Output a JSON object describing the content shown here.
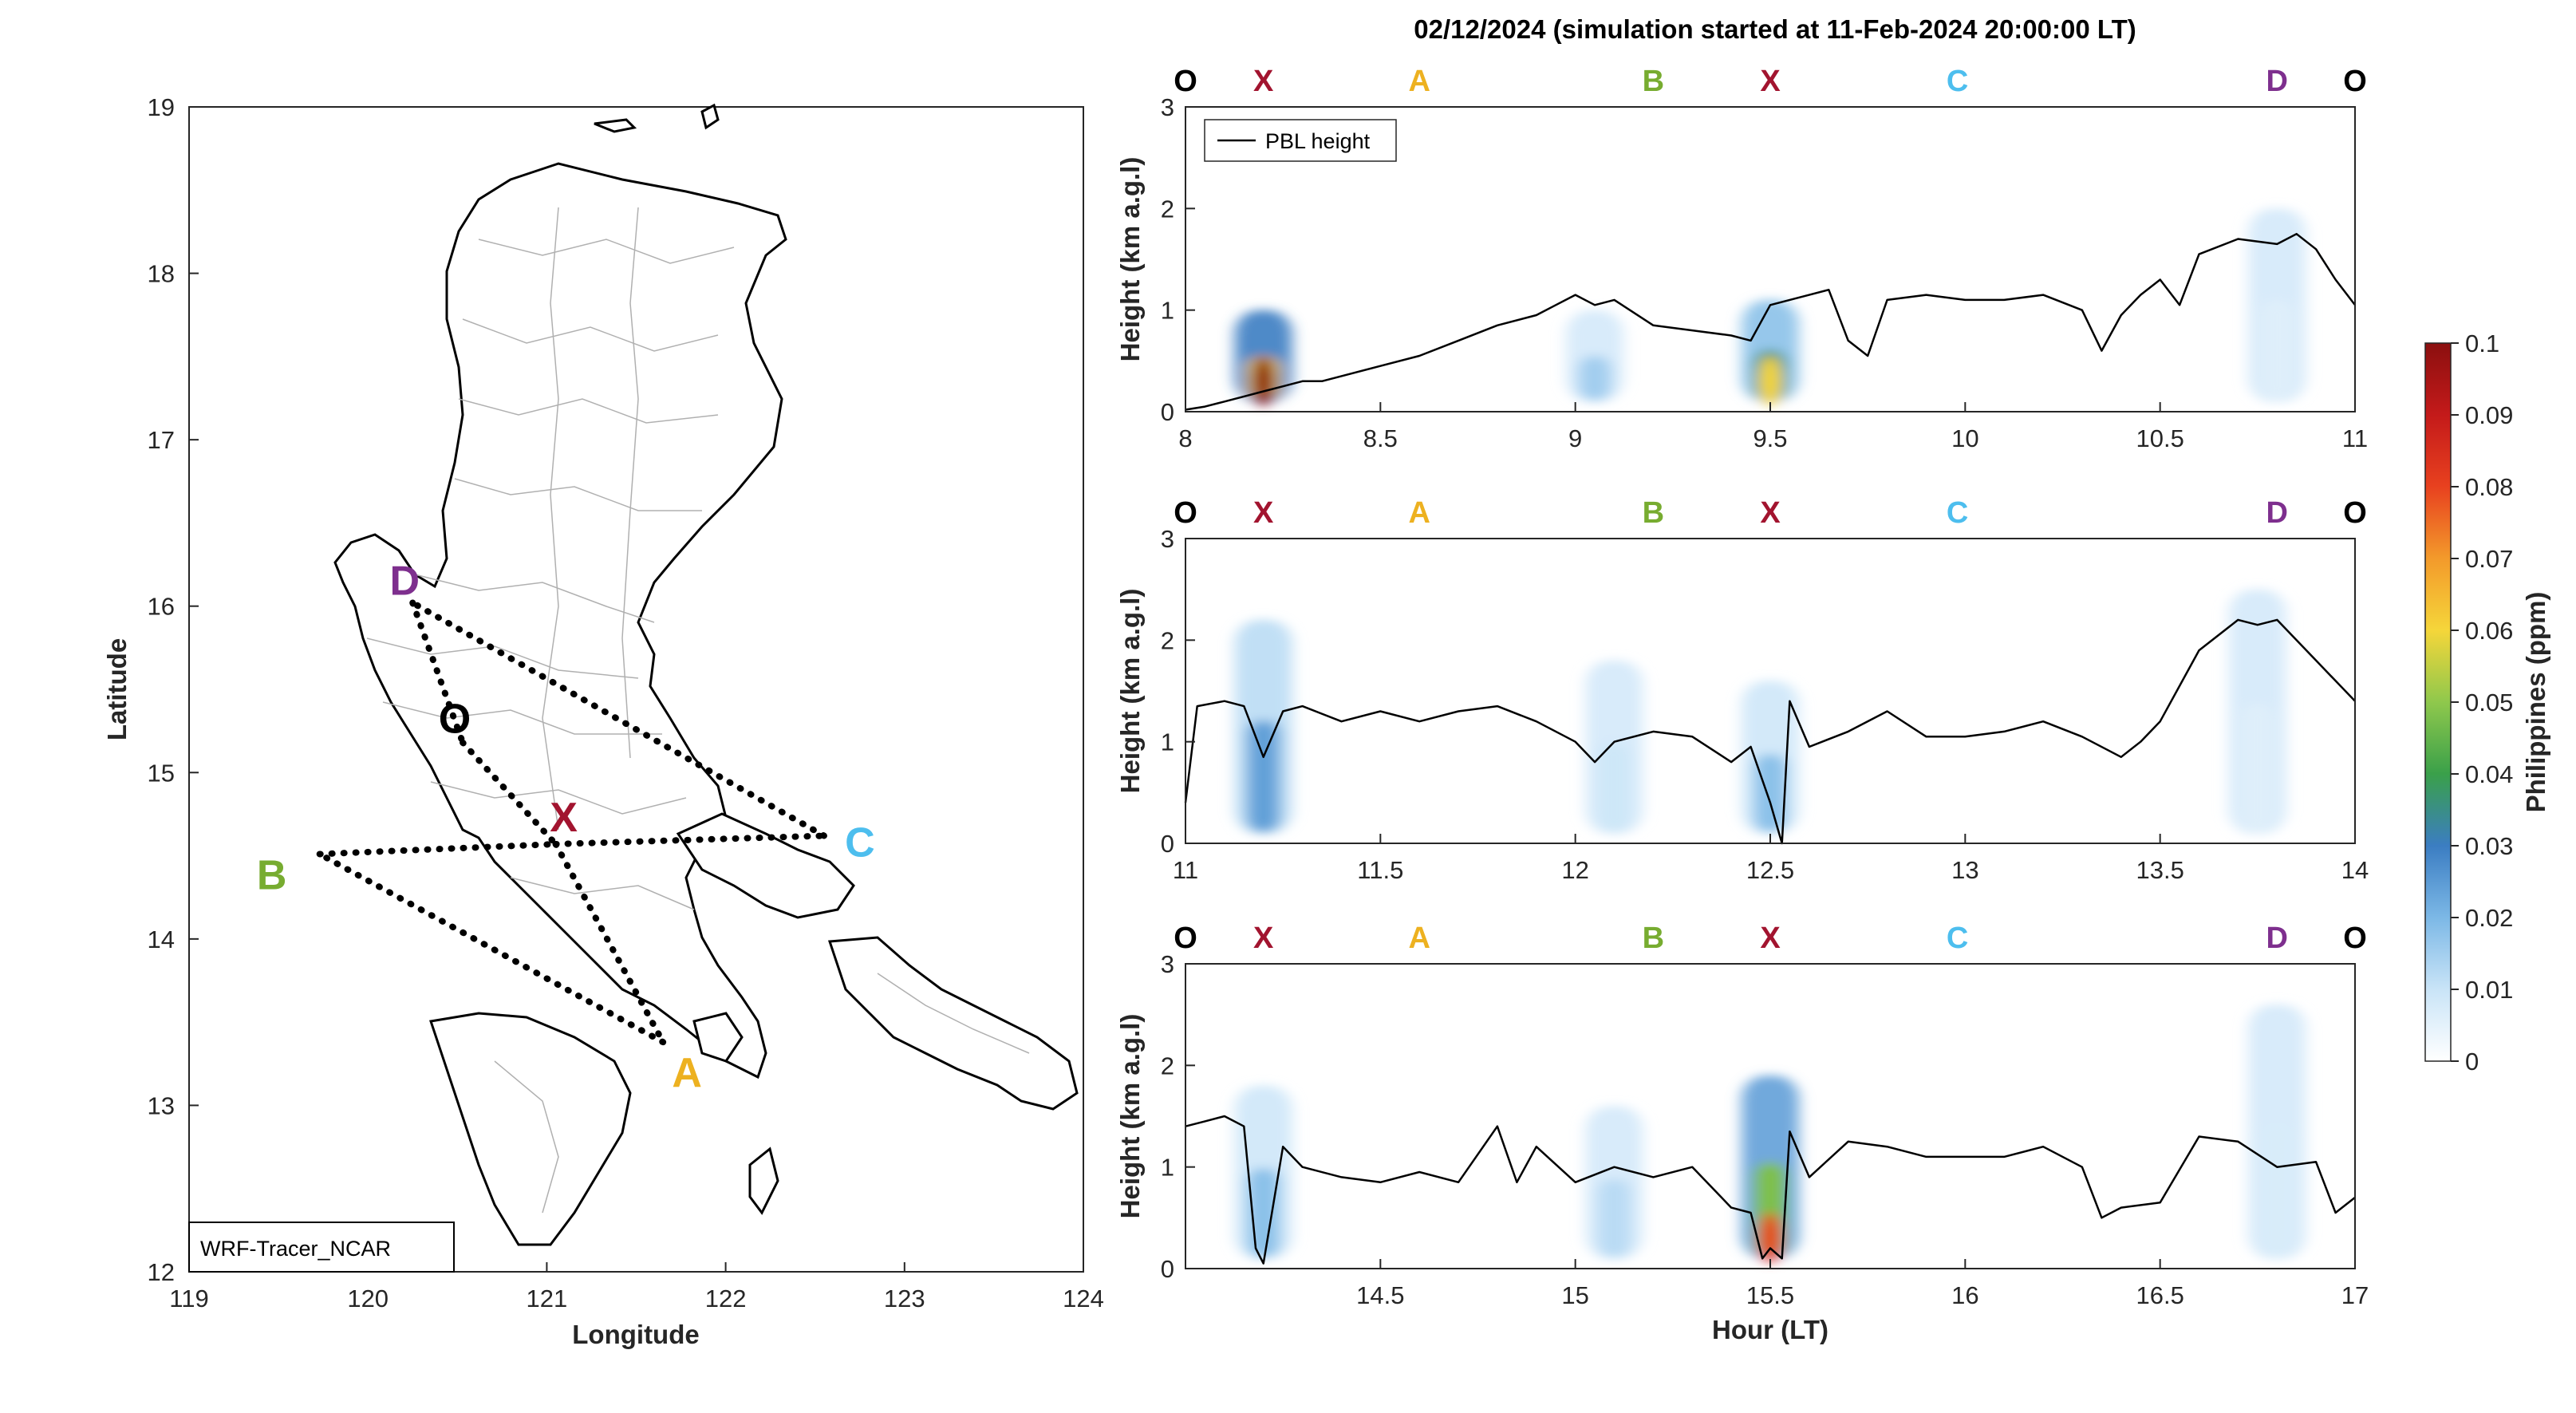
{
  "title": "02/12/2024 (simulation started at 11-Feb-2024 20:00:00 LT)",
  "colors": {
    "O": "#000000",
    "X": "#a2142f",
    "A": "#edb120",
    "B": "#77ac30",
    "C": "#4dbeee",
    "D": "#7e2f8e"
  },
  "map": {
    "xlabel": "Longitude",
    "ylabel": "Latitude",
    "xlim": [
      119,
      124
    ],
    "ylim": [
      12,
      19
    ],
    "xticks": [
      "119",
      "120",
      "121",
      "122",
      "123",
      "124"
    ],
    "yticks": [
      "12",
      "13",
      "14",
      "15",
      "16",
      "17",
      "18",
      "19"
    ],
    "badge": "WRF-Tracer_NCAR",
    "points": [
      {
        "id": "D",
        "lon": 120.25,
        "lat": 16.02
      },
      {
        "id": "O",
        "lon": 120.53,
        "lat": 15.18
      },
      {
        "id": "X",
        "lon": 121.05,
        "lat": 14.57
      },
      {
        "id": "C",
        "lon": 122.55,
        "lat": 14.62
      },
      {
        "id": "B",
        "lon": 119.73,
        "lat": 14.51
      },
      {
        "id": "A",
        "lon": 121.65,
        "lat": 13.38
      }
    ],
    "route_sequence": [
      "O",
      "X",
      "A",
      "B",
      "X",
      "C",
      "D",
      "O"
    ]
  },
  "chart_data": [
    {
      "type": "heatmap",
      "xlim": [
        8,
        11
      ],
      "ylim": [
        0,
        3
      ],
      "xticks": [
        "8",
        "8.5",
        "9",
        "9.5",
        "10",
        "10.5",
        "11"
      ],
      "yticks": [
        "0",
        "1",
        "2",
        "3"
      ],
      "ylabel": "Height (km a.g.l)",
      "legend": "PBL height",
      "legend_position": "top-left",
      "route_markers": [
        {
          "label": "O",
          "x": 8.0
        },
        {
          "label": "X",
          "x": 8.2
        },
        {
          "label": "A",
          "x": 8.6
        },
        {
          "label": "B",
          "x": 9.2
        },
        {
          "label": "X",
          "x": 9.5
        },
        {
          "label": "C",
          "x": 9.98
        },
        {
          "label": "D",
          "x": 10.8
        },
        {
          "label": "O",
          "x": 11.0
        }
      ],
      "pbl_height": {
        "x": [
          8.0,
          8.05,
          8.1,
          8.15,
          8.2,
          8.25,
          8.3,
          8.35,
          8.4,
          8.5,
          8.6,
          8.7,
          8.8,
          8.9,
          8.95,
          9.0,
          9.05,
          9.1,
          9.2,
          9.3,
          9.4,
          9.45,
          9.5,
          9.55,
          9.6,
          9.65,
          9.7,
          9.75,
          9.8,
          9.9,
          10.0,
          10.1,
          10.2,
          10.3,
          10.35,
          10.4,
          10.45,
          10.5,
          10.55,
          10.6,
          10.7,
          10.8,
          10.85,
          10.9,
          10.95,
          11.0
        ],
        "y": [
          0.02,
          0.05,
          0.1,
          0.15,
          0.2,
          0.25,
          0.3,
          0.3,
          0.35,
          0.45,
          0.55,
          0.7,
          0.85,
          0.95,
          1.05,
          1.15,
          1.05,
          1.1,
          0.85,
          0.8,
          0.75,
          0.7,
          1.05,
          1.1,
          1.15,
          1.2,
          0.7,
          0.55,
          1.1,
          1.15,
          1.1,
          1.1,
          1.15,
          1.0,
          0.6,
          0.95,
          1.15,
          1.3,
          1.05,
          1.55,
          1.7,
          1.65,
          1.75,
          1.6,
          1.3,
          1.05
        ]
      },
      "tracer_plumes": [
        {
          "x": 8.2,
          "top": 1.0,
          "peak_ppm": 0.1
        },
        {
          "x": 9.05,
          "top": 1.0,
          "peak_ppm": 0.025
        },
        {
          "x": 9.5,
          "top": 1.1,
          "peak_ppm": 0.06
        },
        {
          "x": 10.8,
          "top": 2.0,
          "peak_ppm": 0.01
        }
      ]
    },
    {
      "type": "heatmap",
      "xlim": [
        11,
        14
      ],
      "ylim": [
        0,
        3
      ],
      "xticks": [
        "11",
        "11.5",
        "12",
        "12.5",
        "13",
        "13.5",
        "14"
      ],
      "yticks": [
        "0",
        "1",
        "2",
        "3"
      ],
      "ylabel": "Height (km a.g.l)",
      "route_markers": [
        {
          "label": "O",
          "x": 11.0
        },
        {
          "label": "X",
          "x": 11.2
        },
        {
          "label": "A",
          "x": 11.6
        },
        {
          "label": "B",
          "x": 12.2
        },
        {
          "label": "X",
          "x": 12.5
        },
        {
          "label": "C",
          "x": 12.98
        },
        {
          "label": "D",
          "x": 13.8
        },
        {
          "label": "O",
          "x": 14.0
        }
      ],
      "pbl_height": {
        "x": [
          11.0,
          11.03,
          11.1,
          11.15,
          11.2,
          11.25,
          11.3,
          11.4,
          11.5,
          11.6,
          11.7,
          11.8,
          11.9,
          12.0,
          12.05,
          12.1,
          12.2,
          12.3,
          12.4,
          12.45,
          12.5,
          12.53,
          12.55,
          12.6,
          12.7,
          12.8,
          12.9,
          13.0,
          13.1,
          13.2,
          13.3,
          13.4,
          13.45,
          13.5,
          13.6,
          13.7,
          13.75,
          13.8,
          13.9,
          14.0
        ],
        "y": [
          0.4,
          1.35,
          1.4,
          1.35,
          0.85,
          1.3,
          1.35,
          1.2,
          1.3,
          1.2,
          1.3,
          1.35,
          1.2,
          1.0,
          0.8,
          1.0,
          1.1,
          1.05,
          0.8,
          0.95,
          0.4,
          0.0,
          1.4,
          0.95,
          1.1,
          1.3,
          1.05,
          1.05,
          1.1,
          1.2,
          1.05,
          0.85,
          1.0,
          1.2,
          1.9,
          2.2,
          2.15,
          2.2,
          1.8,
          1.4
        ]
      },
      "tracer_plumes": [
        {
          "x": 11.2,
          "top": 2.2,
          "peak_ppm": 0.04
        },
        {
          "x": 12.1,
          "top": 1.8,
          "peak_ppm": 0.015
        },
        {
          "x": 12.5,
          "top": 1.6,
          "peak_ppm": 0.03
        },
        {
          "x": 13.75,
          "top": 2.5,
          "peak_ppm": 0.01
        }
      ]
    },
    {
      "type": "heatmap",
      "xlim": [
        14,
        17
      ],
      "ylim": [
        0,
        3
      ],
      "xticks": [
        "14.5",
        "15",
        "15.5",
        "16",
        "16.5",
        "17"
      ],
      "yticks": [
        "0",
        "1",
        "2",
        "3"
      ],
      "xlabel": "Hour (LT)",
      "ylabel": "Height (km a.g.l)",
      "route_markers": [
        {
          "label": "O",
          "x": 14.0
        },
        {
          "label": "X",
          "x": 14.2
        },
        {
          "label": "A",
          "x": 14.6
        },
        {
          "label": "B",
          "x": 15.2
        },
        {
          "label": "X",
          "x": 15.5
        },
        {
          "label": "C",
          "x": 15.98
        },
        {
          "label": "D",
          "x": 16.8
        },
        {
          "label": "O",
          "x": 17.0
        }
      ],
      "pbl_height": {
        "x": [
          14.0,
          14.05,
          14.1,
          14.15,
          14.18,
          14.2,
          14.25,
          14.3,
          14.4,
          14.5,
          14.6,
          14.7,
          14.8,
          14.85,
          14.9,
          15.0,
          15.1,
          15.2,
          15.3,
          15.4,
          15.45,
          15.48,
          15.5,
          15.53,
          15.55,
          15.6,
          15.7,
          15.8,
          15.9,
          16.0,
          16.1,
          16.2,
          16.3,
          16.35,
          16.4,
          16.5,
          16.6,
          16.7,
          16.8,
          16.9,
          16.95,
          17.0
        ],
        "y": [
          1.4,
          1.45,
          1.5,
          1.4,
          0.2,
          0.05,
          1.2,
          1.0,
          0.9,
          0.85,
          0.95,
          0.85,
          1.4,
          0.85,
          1.2,
          0.85,
          1.0,
          0.9,
          1.0,
          0.6,
          0.55,
          0.1,
          0.2,
          0.1,
          1.35,
          0.9,
          1.25,
          1.2,
          1.1,
          1.1,
          1.1,
          1.2,
          1.0,
          0.5,
          0.6,
          0.65,
          1.3,
          1.25,
          1.0,
          1.05,
          0.55,
          0.7
        ]
      },
      "tracer_plumes": [
        {
          "x": 14.2,
          "top": 1.8,
          "peak_ppm": 0.03
        },
        {
          "x": 15.1,
          "top": 1.6,
          "peak_ppm": 0.02
        },
        {
          "x": 15.5,
          "top": 1.9,
          "peak_ppm": 0.08
        },
        {
          "x": 16.8,
          "top": 2.6,
          "peak_ppm": 0.012
        }
      ]
    }
  ],
  "colorbar": {
    "label": "Philippines (ppm)",
    "ticks": [
      "0",
      "0.01",
      "0.02",
      "0.03",
      "0.04",
      "0.05",
      "0.06",
      "0.07",
      "0.08",
      "0.09",
      "0.1"
    ],
    "range": [
      0,
      0.1
    ]
  }
}
